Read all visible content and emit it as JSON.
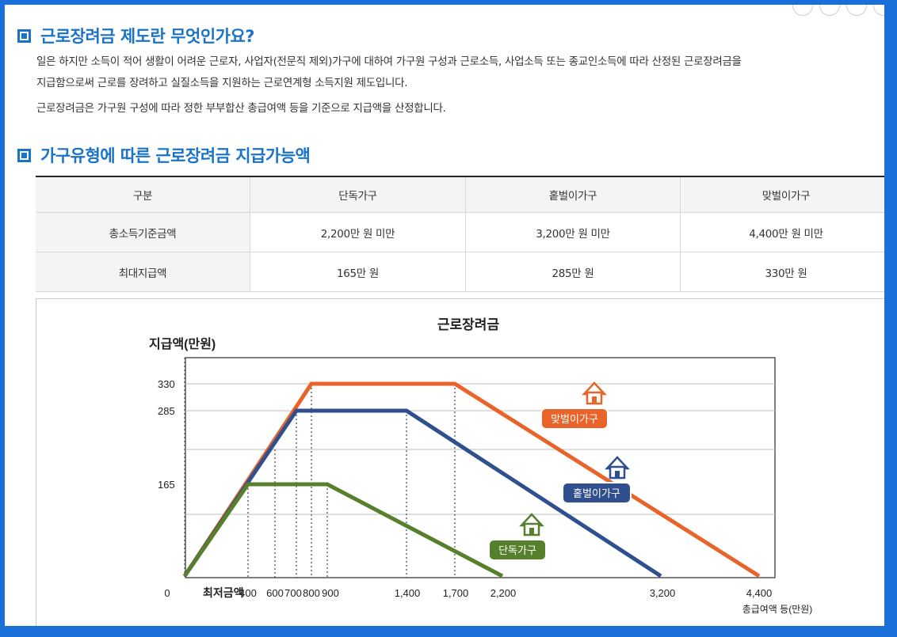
{
  "section1": {
    "title": "근로장려금 제도란 무엇인가요?",
    "para1_line1": "일은 하지만 소득이 적어 생활이 어려운 근로자, 사업자(전문직 제외)가구에 대하여 가구원 구성과 근로소득, 사업소득 또는 종교인소득에 따라 산정된 근로장려금을",
    "para1_line2": "지급함으로써 근로를 장려하고 실질소득을 지원하는 근로연계형 소득지원 제도입니다.",
    "para2": "근로장려금은 가구원 구성에 따라 정한 부부합산 총급여액 등을 기준으로 지급액을 산정합니다."
  },
  "section2": {
    "title": "가구유형에 따른 근로장려금 지급가능액"
  },
  "table": {
    "headers": [
      "구분",
      "단독가구",
      "홑벌이가구",
      "맞벌이가구"
    ],
    "rows": [
      [
        "총소득기준금액",
        "2,200만 원 미만",
        "3,200만 원 미만",
        "4,400만 원 미만"
      ],
      [
        "최대지급액",
        "165만 원",
        "285만 원",
        "330만 원"
      ]
    ]
  },
  "chart_data": {
    "type": "line",
    "title": "근로장려금",
    "ylabel": "지급액(만원)",
    "xlabel": "총급여액 등(만원)",
    "x_tick_labels": [
      "0",
      "최저금액",
      "400",
      "600",
      "700",
      "800",
      "900",
      "1,400",
      "1,700",
      "2,200",
      "3,200",
      "4,400"
    ],
    "y_tick_labels": [
      "330",
      "285",
      "165"
    ],
    "xlim": [
      0,
      4400
    ],
    "ylim": [
      0,
      330
    ],
    "series": [
      {
        "name": "단독가구",
        "color": "#56802b",
        "x": [
          0,
          400,
          900,
          2200
        ],
        "y": [
          0,
          165,
          165,
          0
        ]
      },
      {
        "name": "홑벌이가구",
        "color": "#2f4f8f",
        "x": [
          0,
          700,
          1400,
          3200
        ],
        "y": [
          0,
          285,
          285,
          0
        ]
      },
      {
        "name": "맞벌이가구",
        "color": "#e8642a",
        "x": [
          0,
          800,
          1700,
          4400
        ],
        "y": [
          0,
          330,
          330,
          0
        ]
      }
    ],
    "house_icon": "house-icon"
  }
}
